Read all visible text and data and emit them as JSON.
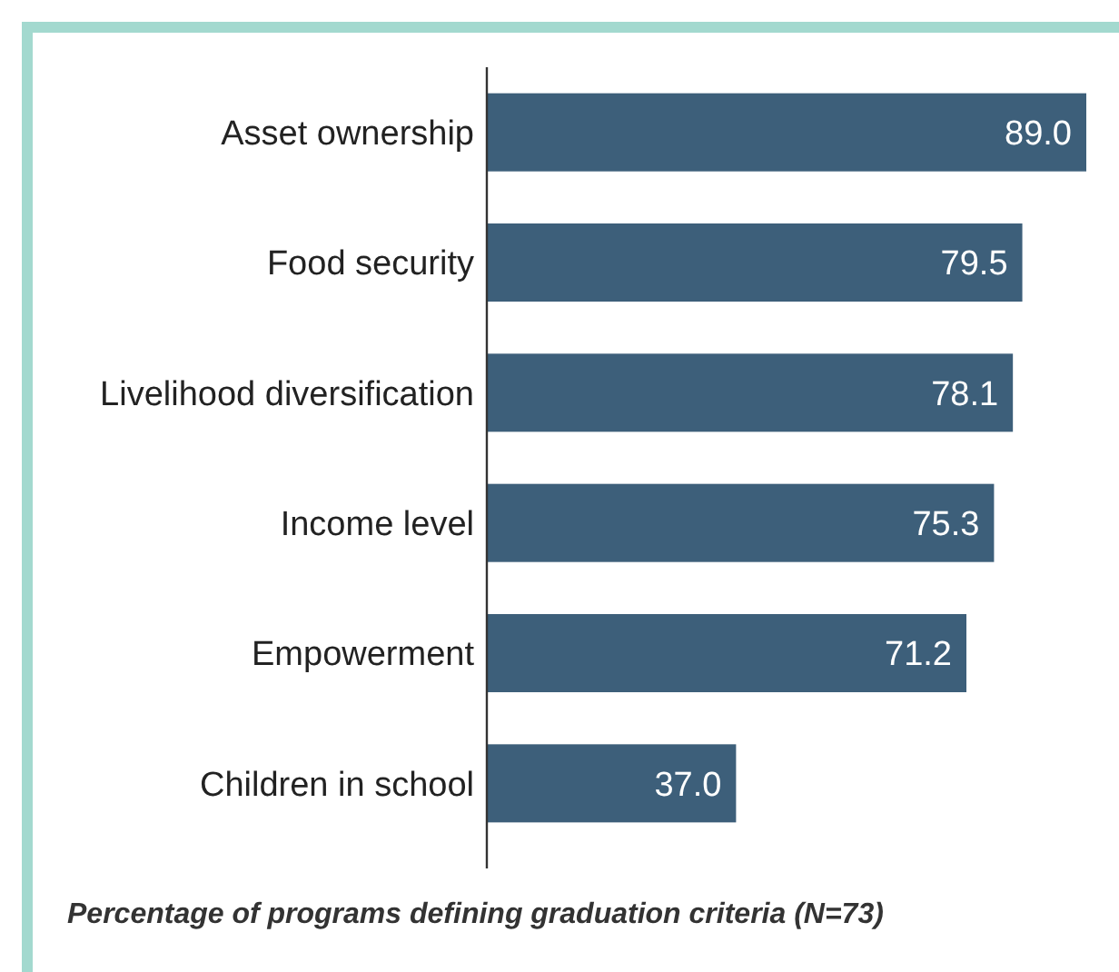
{
  "chart_data": {
    "type": "bar",
    "orientation": "horizontal",
    "categories": [
      "Asset ownership",
      "Food security",
      "Livelihood diversification",
      "Income level",
      "Empowerment",
      "Children in school"
    ],
    "values": [
      89.0,
      79.5,
      78.1,
      75.3,
      71.2,
      37.0
    ],
    "value_labels": [
      "89.0",
      "79.5",
      "78.1",
      "75.3",
      "71.2",
      "37.0"
    ],
    "color": "#3d5f7a",
    "data_labels": true,
    "annotations": [
      "Percentage of programs defining graduation criteria (N=73)"
    ]
  }
}
